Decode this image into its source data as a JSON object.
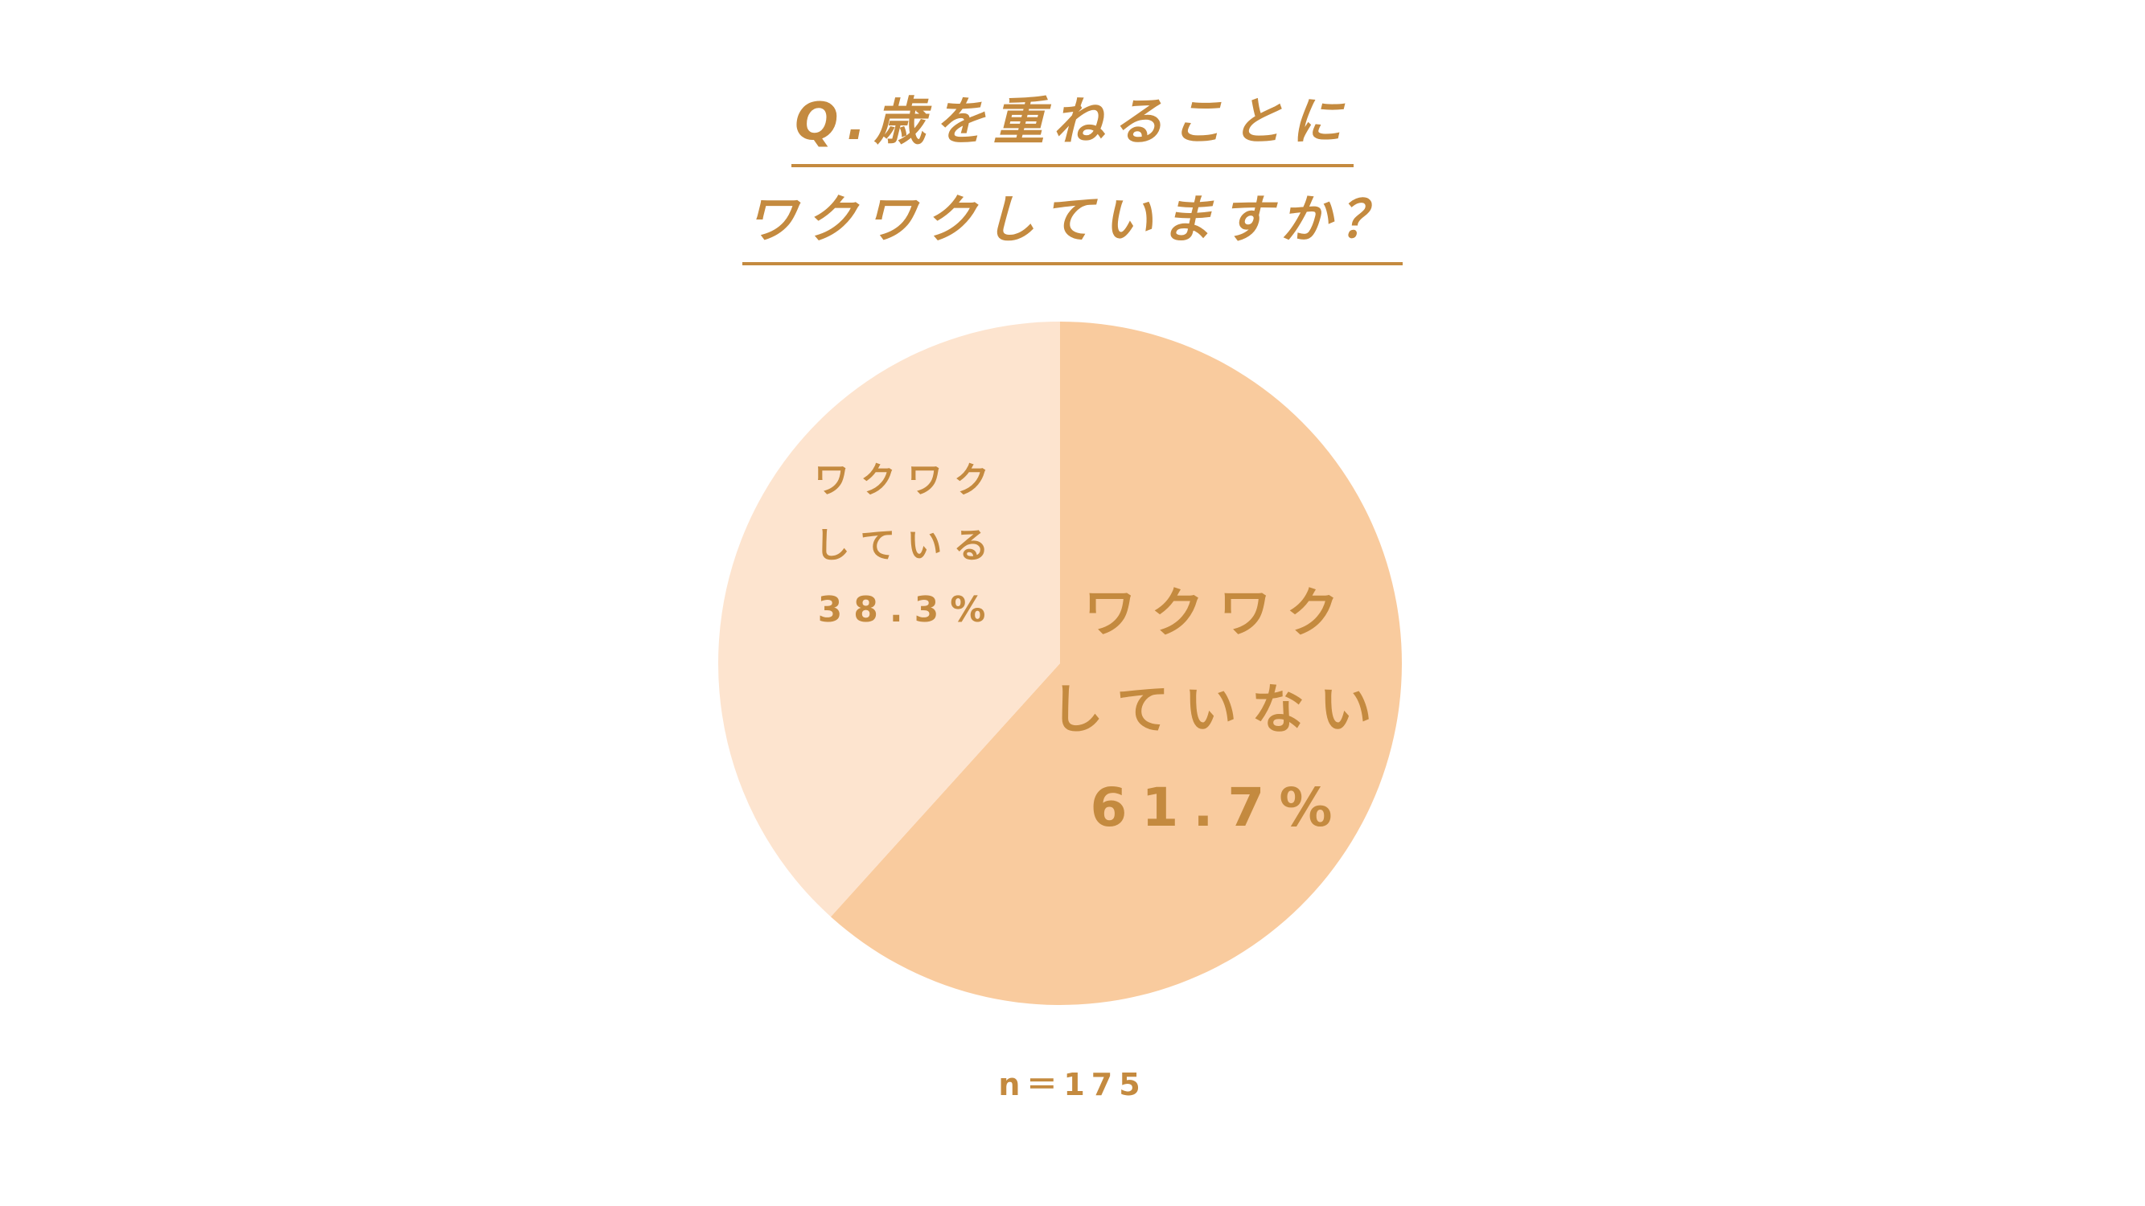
{
  "title": {
    "line1": "Q.歳を重ねることに",
    "line2": "ワクワクしていますか？"
  },
  "colors": {
    "text": "#c48a3f",
    "slice_not_excited": "#f9cb9e",
    "slice_excited": "#fde4cf",
    "background": "#ffffff"
  },
  "chart_data": {
    "type": "pie",
    "slices": [
      {
        "label_lines": [
          "ワクワク",
          "していない"
        ],
        "percent_label": "61.7%",
        "value": 61.7,
        "color": "#f9cb9e"
      },
      {
        "label_lines": [
          "ワクワク",
          "している"
        ],
        "percent_label": "38.3%",
        "value": 38.3,
        "color": "#fde4cf"
      }
    ],
    "start": "12 o'clock",
    "direction": "clockwise",
    "legend": "none",
    "note": "n＝175"
  }
}
